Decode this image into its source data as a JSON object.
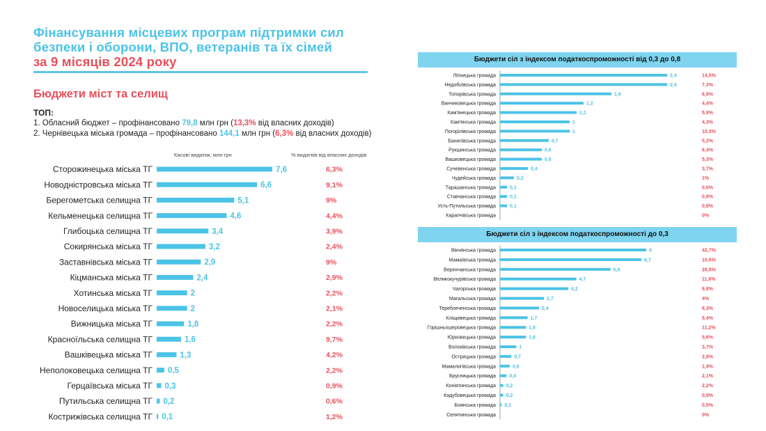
{
  "title": {
    "line1": "Фінансування місцевих програм підтримки сил",
    "line2": "безпеки і оборони, ВПО, ветеранів та їх сімей",
    "line3": "за 9 місяців 2024 року"
  },
  "subtitle": "Бюджети міст та селищ",
  "top": {
    "label": "ТОП:",
    "item1": {
      "prefix": "1. Обласний бюджет – профінансовано ",
      "amount": "79,8",
      "unit": " млн грн (",
      "pct": "13,3%",
      "suffix": " від власних доходів)"
    },
    "item2": {
      "prefix": "2. Чернівецька міська громада – профінансовано ",
      "amount": "144,1",
      "unit": " млн грн (",
      "pct": "6,3%",
      "suffix": " від власних доходів)"
    }
  },
  "main_headers": {
    "spend": "Касові видатки, млн грн",
    "pct": "% видатків від власних доходів"
  },
  "panels": {
    "p1_title": "Бюджети сіл з індексом податкоспроможності від 0,3 до 0,8",
    "p2_title": "Бюджети сіл з індексом податкоспроможності до 0,3"
  },
  "colors": {
    "bar": "#4cc3e6",
    "pct": "#e8505b",
    "title_blue": "#4cc3e6",
    "title_red": "#e8505b",
    "header_bg": "#7fd4ef"
  },
  "chart_data": [
    {
      "type": "bar",
      "orientation": "horizontal",
      "categories": [
        "Сторожинецька міська ТГ",
        "Новодністровська міська ТГ",
        "Берегометська селищна ТГ",
        "Кельменецька селищна ТГ",
        "Глибоцька селищна ТГ",
        "Сокирянська міська ТГ",
        "Заставнівська міська ТГ",
        "Кіцманська міська ТГ",
        "Хотинська міська ТГ",
        "Новоселицька міська ТГ",
        "Вижницька міська ТГ",
        "Красноїльська селищна ТГ",
        "Вашківецька міська ТГ",
        "Неполоковецька селищна ТГ",
        "Герцаївська міська ТГ",
        "Путильська селищна ТГ",
        "Кострижівська селищна ТГ"
      ],
      "values": [
        7.6,
        6.6,
        5.1,
        4.6,
        3.4,
        3.2,
        2.9,
        2.4,
        2,
        2,
        1.8,
        1.6,
        1.3,
        0.5,
        0.3,
        0.2,
        0.1
      ],
      "value_labels": [
        "7,6",
        "6,6",
        "5,1",
        "4,6",
        "3,4",
        "3,2",
        "2,9",
        "2,4",
        "2",
        "2",
        "1,8",
        "1,6",
        "1,3",
        "0,5",
        "0,3",
        "0,2",
        "0,1"
      ],
      "pct_labels": [
        "6,3%",
        "9,1%",
        "9%",
        "4,4%",
        "3,9%",
        "2,4%",
        "9%",
        "2,9%",
        "2,2%",
        "2,1%",
        "2,2%",
        "9,7%",
        "4,2%",
        "2,2%",
        "0,9%",
        "0,6%",
        "1,2%"
      ],
      "xlim": [
        0,
        7.6
      ]
    },
    {
      "type": "bar",
      "orientation": "horizontal",
      "title": "Бюджети сіл з індексом податкоспроможності від 0,3 до 0,8",
      "categories": [
        "Ліпницька громада",
        "Недобоївська громада",
        "Топорівська громада",
        "Ванчиковецька громада",
        "Кам'янецька громада",
        "Кам'янська громада",
        "Погорілівська громада",
        "Банилівська громада",
        "Рукшинська громада",
        "Вашковецька громада",
        "Сучевенська громада",
        "Чудейська громада",
        "Тарашанська громада",
        "Ставчанська громада",
        "Усть-Путильська громада",
        "Карапчівська громада"
      ],
      "values": [
        2.4,
        2.4,
        1.6,
        1.2,
        1.1,
        1,
        1,
        0.7,
        0.6,
        0.6,
        0.4,
        0.2,
        0.1,
        0.1,
        0.1,
        0
      ],
      "value_labels": [
        "2,4",
        "2,4",
        "1,6",
        "1,2",
        "1,1",
        "1",
        "1",
        "0,7",
        "0,6",
        "0,6",
        "0,4",
        "0,2",
        "0,1",
        "0,1",
        "0,1",
        ""
      ],
      "pct_labels": [
        "14,5%",
        "7,3%",
        "6,9%",
        "4,4%",
        "5,9%",
        "4,3%",
        "10,3%",
        "5,2%",
        "6,4%",
        "5,3%",
        "3,7%",
        "1%",
        "0,6%",
        "0,9%",
        "0,8%",
        "0%"
      ],
      "xlim": [
        0,
        2.4
      ]
    },
    {
      "type": "bar",
      "orientation": "horizontal",
      "title": "Бюджети сіл з індексом податкоспроможності до 0,3",
      "categories": [
        "Вікнянська громада",
        "Мамаївська громада",
        "Веренчанська громада",
        "Великокучурівська громада",
        "Чагорська громада",
        "Магальська громада",
        "Тереблеченська громада",
        "Кліщківецька громада",
        "Горішньошеровецька громада",
        "Юрковецька громада",
        "Волоківська громада",
        "Острицька громада",
        "Мамалигівська громада",
        "Брусницька громада",
        "Коніятинська громада",
        "Кадубовецька громада",
        "Боянська громада",
        "Селятинська громада"
      ],
      "values": [
        9,
        8.7,
        6.8,
        4.7,
        4.2,
        2.7,
        2.4,
        1.7,
        1.6,
        1.6,
        1,
        0.7,
        0.6,
        0.4,
        0.2,
        0.2,
        0.1,
        0
      ],
      "value_labels": [
        "9",
        "8,7",
        "6,8",
        "4,7",
        "4,2",
        "2,7",
        "2,4",
        "1,7",
        "1,6",
        "1,6",
        "1",
        "0,7",
        "0,6",
        "0,4",
        "0,2",
        "0,2",
        "0,1",
        ""
      ],
      "pct_labels": [
        "42,7%",
        "10,6%",
        "28,8%",
        "11,6%",
        "9,8%",
        "4%",
        "8,3%",
        "5,4%",
        "11,2%",
        "5,6%",
        "3,7%",
        "2,8%",
        "1,9%",
        "2,1%",
        "2,2%",
        "0,9%",
        "0,5%",
        "0%"
      ],
      "xlim": [
        0,
        9
      ]
    }
  ]
}
